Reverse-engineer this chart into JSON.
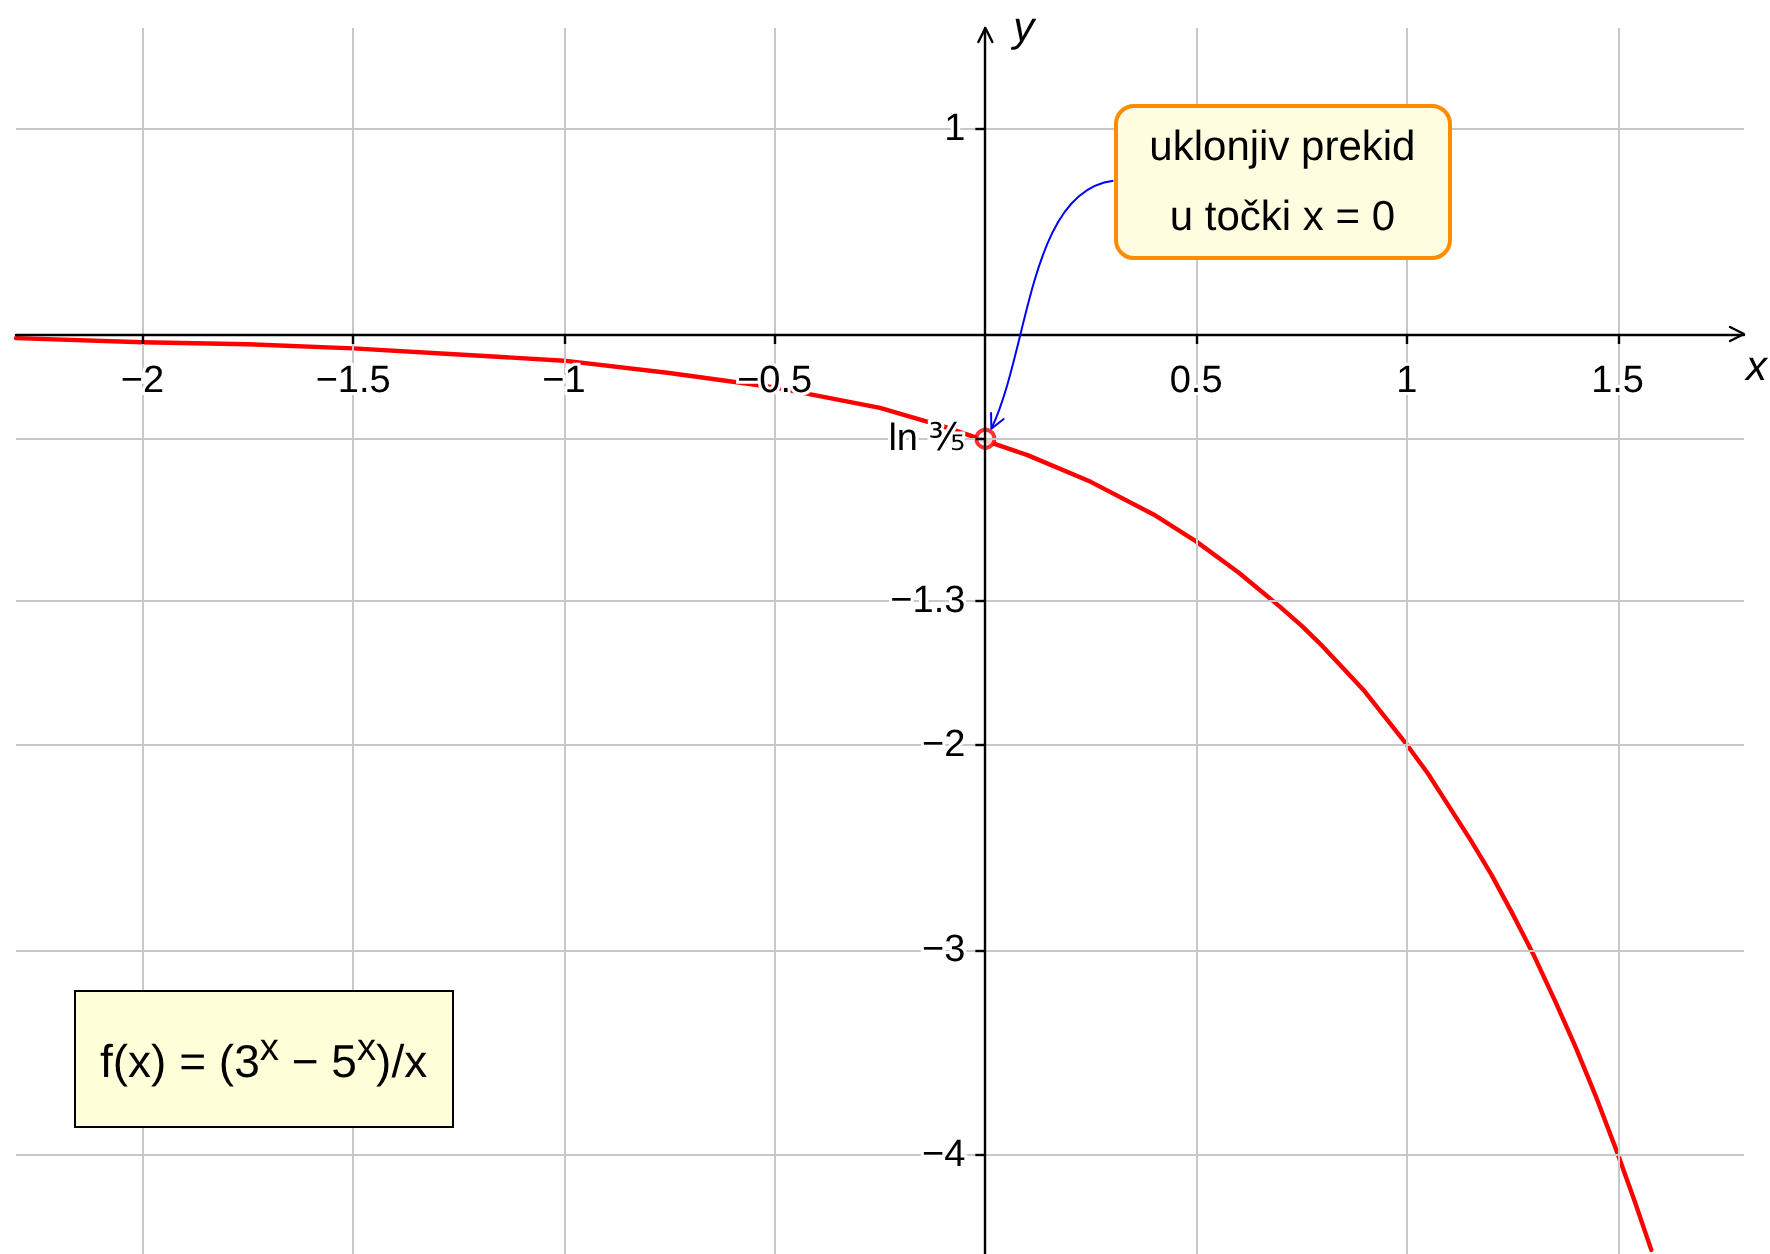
{
  "chart_data": {
    "type": "line",
    "xlabel": "x",
    "ylabel": "y",
    "xlim": [
      -2.3,
      1.8
    ],
    "ylim": [
      -4.48,
      1.49
    ],
    "xticks": [
      -2,
      -1.5,
      -1,
      -0.5,
      0.5,
      1,
      1.5
    ],
    "yticks": [
      1,
      {
        "value": -0.51,
        "label": "ln ⅗"
      },
      -1.3,
      -2,
      -3,
      -4
    ],
    "grid": true,
    "line_style": "solid",
    "series": [
      {
        "color": "#ff0000",
        "marker": "none",
        "x": [
          -2.3,
          -2,
          -1.75,
          -1.5,
          -1.25,
          -1,
          -0.75,
          -0.5,
          -0.25,
          -0.1,
          0.1,
          0.25,
          0.4,
          0.5,
          0.6,
          0.7,
          0.75,
          0.8,
          0.9,
          1,
          1.05,
          1.1,
          1.15,
          1.2,
          1.25,
          1.3,
          1.35,
          1.4,
          1.45,
          1.5,
          1.54,
          1.58
        ],
        "values": [
          -0.02,
          -0.04,
          -0.05,
          -0.07,
          -0.1,
          -0.13,
          -0.19,
          -0.26,
          -0.36,
          -0.45,
          -0.59,
          -0.72,
          -0.88,
          -1.01,
          -1.16,
          -1.33,
          -1.42,
          -1.52,
          -1.74,
          -2,
          -2.14,
          -2.3,
          -2.46,
          -2.63,
          -2.82,
          -3.02,
          -3.24,
          -3.47,
          -3.72,
          -3.99,
          -4.22,
          -4.46
        ]
      },
      {
        "type": "scatter",
        "color": "#ff0000",
        "marker": "circle",
        "x": [
          0
        ],
        "values": [
          -0.51
        ]
      }
    ],
    "annotations": [
      {
        "text": "uklonjiv prekid\nu točki x = 0",
        "x": 0,
        "y": -0.51
      },
      "f(x) = (3$^{x}$ − 5$^{x}$)/x"
    ]
  }
}
